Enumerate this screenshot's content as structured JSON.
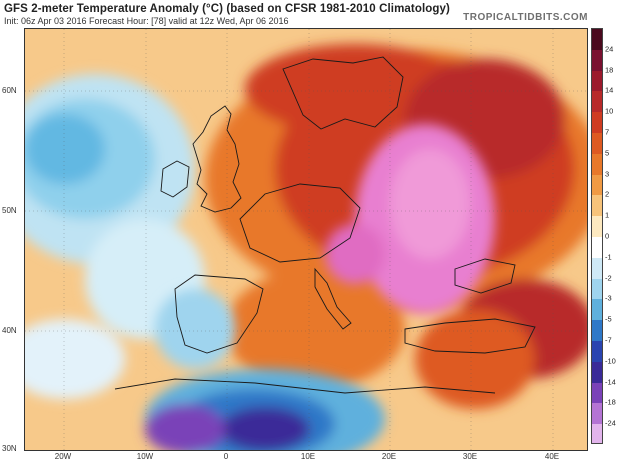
{
  "header": {
    "title": "GFS 2-meter Temperature Anomaly (°C) (based on CFSR 1981-2010 Climatology)",
    "subtitle": "Init: 06z Apr 03 2016   Forecast Hour: [78]   valid at 12z Wed, Apr 06 2016",
    "brand": "TROPICALTIDBITS.COM"
  },
  "map": {
    "lat_labels": [
      "60N",
      "50N",
      "40N",
      "30N"
    ],
    "lon_labels": [
      "20W",
      "10W",
      "0",
      "10E",
      "20E",
      "30E",
      "40E"
    ],
    "ocean_anomaly_color": "#8fd0ec",
    "warm_core_color": "#e87fd0"
  },
  "colorbar": {
    "labels": [
      "24",
      "18",
      "14",
      "10",
      "7",
      "5",
      "3",
      "2",
      "1",
      "0",
      "-1",
      "-2",
      "-3",
      "-5",
      "-7",
      "-10",
      "-14",
      "-18",
      "-24"
    ],
    "colors": [
      "#4a0a1e",
      "#7a1030",
      "#9c1a2c",
      "#b82a2a",
      "#cf3c22",
      "#de5a22",
      "#e8782a",
      "#f09a44",
      "#f7c37a",
      "#fde9c0",
      "#ffffff",
      "#cfe9f6",
      "#9fd4ee",
      "#5fb0dd",
      "#2f78c8",
      "#2a44b0",
      "#3a2a98",
      "#7a42b8",
      "#b474d4",
      "#e2b4ec"
    ]
  }
}
